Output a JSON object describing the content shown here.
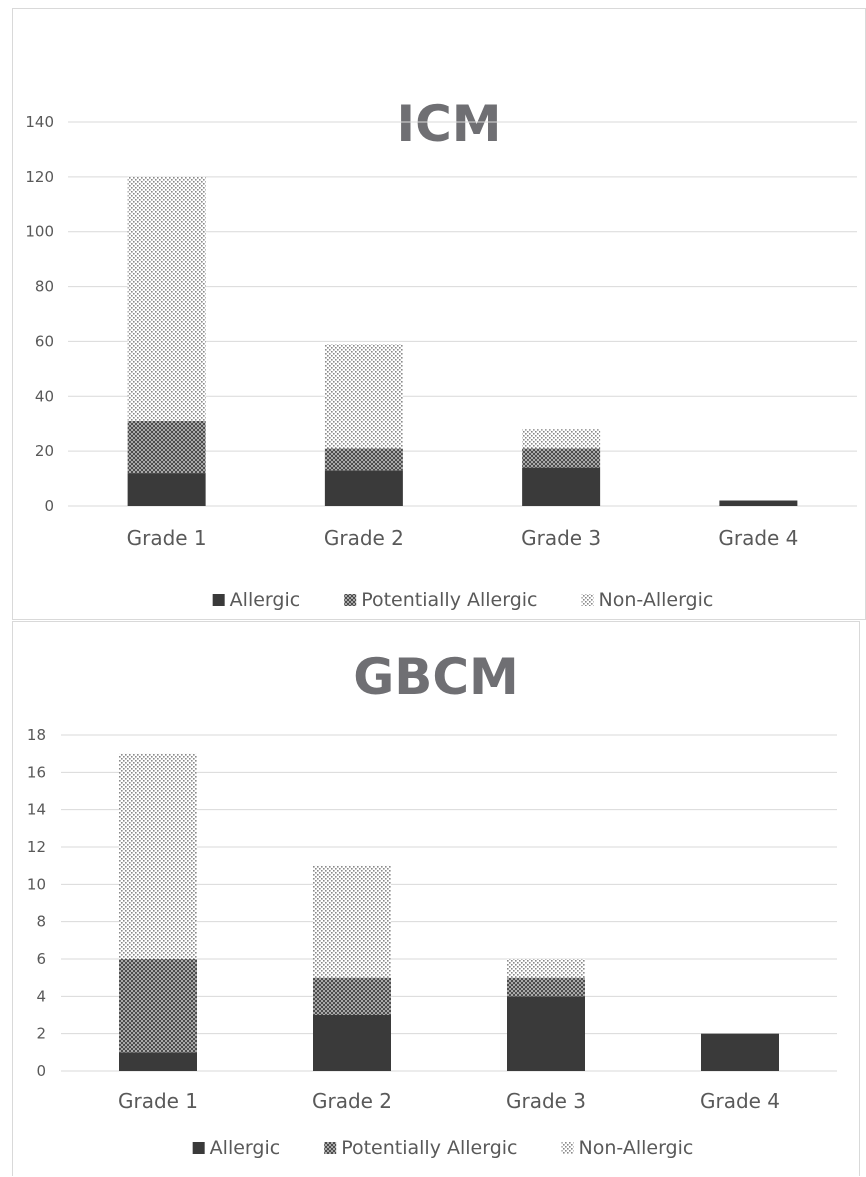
{
  "chart_data": [
    {
      "type": "bar",
      "stacked": true,
      "title": "ICM",
      "categories": [
        "Grade 1",
        "Grade 2",
        "Grade 3",
        "Grade 4"
      ],
      "series": [
        {
          "name": "Allergic",
          "values": [
            12,
            13,
            14,
            2
          ]
        },
        {
          "name": "Potentially Allergic",
          "values": [
            19,
            8,
            7,
            0
          ]
        },
        {
          "name": "Non-Allergic",
          "values": [
            89,
            38,
            7,
            0
          ]
        }
      ],
      "ylim": [
        0,
        140
      ],
      "yticks": [
        0,
        20,
        40,
        60,
        80,
        100,
        120,
        140
      ],
      "grid": true,
      "legend_position": "bottom"
    },
    {
      "type": "bar",
      "stacked": true,
      "title": "GBCM",
      "categories": [
        "Grade 1",
        "Grade 2",
        "Grade 3",
        "Grade 4"
      ],
      "series": [
        {
          "name": "Allergic",
          "values": [
            1,
            3,
            4,
            2
          ]
        },
        {
          "name": "Potentially Allergic",
          "values": [
            5,
            2,
            1,
            0
          ]
        },
        {
          "name": "Non-Allergic",
          "values": [
            11,
            6,
            1,
            0
          ]
        }
      ],
      "ylim": [
        0,
        18
      ],
      "yticks": [
        0,
        2,
        4,
        6,
        8,
        10,
        12,
        14,
        16,
        18
      ],
      "grid": true,
      "legend_position": "bottom"
    }
  ],
  "colors": {
    "allergic": "#3a3a3a",
    "potentially_allergic": "#6e6e6e",
    "non_allergic": "#bdbdbd",
    "grid": "#d9d9d9",
    "text": "#595959",
    "title": "#6f6f73"
  }
}
